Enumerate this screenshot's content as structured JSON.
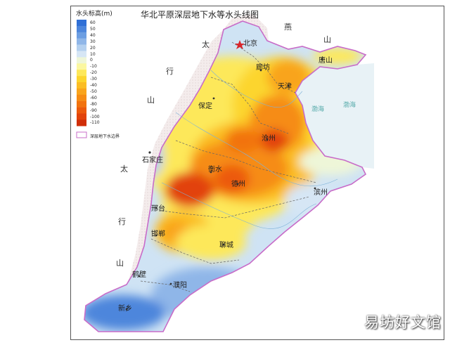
{
  "title": "华北平原深层地下水等水头线图",
  "legend": {
    "title": "水头标高(m)",
    "items": [
      {
        "label": "60",
        "color": "#2f6fd6"
      },
      {
        "label": "50",
        "color": "#4d86dc"
      },
      {
        "label": "40",
        "color": "#6c9ee2"
      },
      {
        "label": "30",
        "color": "#8fb6e8"
      },
      {
        "label": "20",
        "color": "#b4d0ef"
      },
      {
        "label": "10",
        "color": "#d6e6f5"
      },
      {
        "label": "0",
        "color": "#eef6d8"
      },
      {
        "label": "-10",
        "color": "#fbf7a0"
      },
      {
        "label": "-20",
        "color": "#fde85a"
      },
      {
        "label": "-30",
        "color": "#fcd52e"
      },
      {
        "label": "-40",
        "color": "#fbbd24"
      },
      {
        "label": "-50",
        "color": "#f9a41c"
      },
      {
        "label": "-60",
        "color": "#f68c14"
      },
      {
        "label": "-80",
        "color": "#f2730e"
      },
      {
        "label": "-90",
        "color": "#ec5a0c"
      },
      {
        "label": "-100",
        "color": "#e2430a"
      },
      {
        "label": "-110",
        "color": "#d02e08"
      }
    ],
    "boundary_label": "深层地下水边界"
  },
  "places": {
    "beijing": "北京",
    "langfang": "廊坊",
    "tianjin": "天津",
    "tangshan": "唐山",
    "baoding": "保定",
    "cangzhou": "沧州",
    "shijiazhuang": "石家庄",
    "hengshui": "衡水",
    "dezhou": "德州",
    "binzhou": "滨州",
    "xingtai": "邢台",
    "handan": "邯郸",
    "liaocheng": "聊城",
    "hebi": "鹤壁",
    "puyang": "濮阳",
    "xinxiang": "新乡"
  },
  "regions": {
    "tai1": "太",
    "hang1": "行",
    "shan1": "山",
    "tai2": "太",
    "hang2": "行",
    "shan2": "山",
    "yan": "燕",
    "shan3": "山",
    "bohai1": "渤海",
    "bohai2": "渤海"
  },
  "watermark": "易坊好文馆"
}
